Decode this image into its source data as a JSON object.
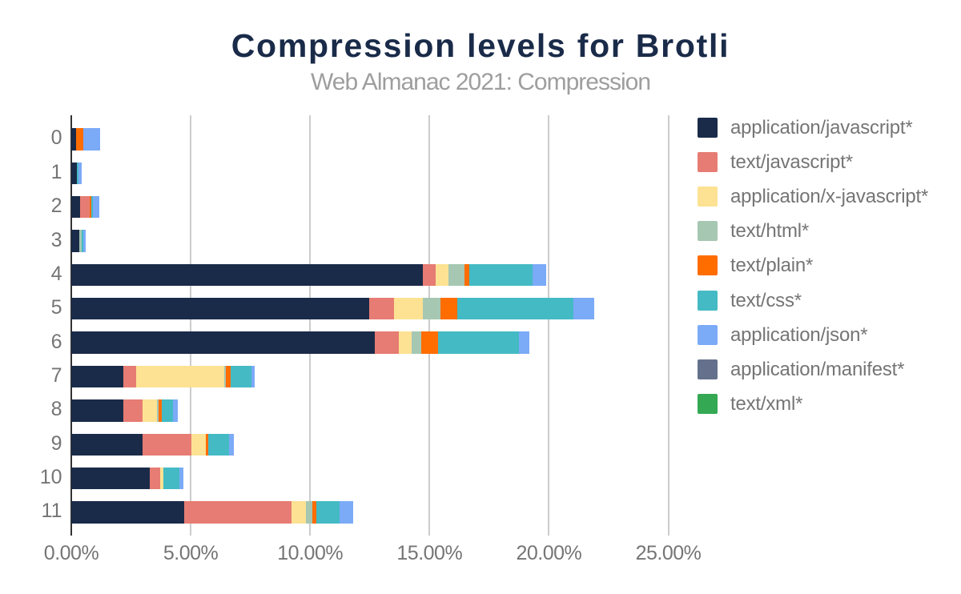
{
  "title": "Compression levels for Brotli",
  "subtitle": "Web Almanac 2021: Compression",
  "chart_data": {
    "type": "bar",
    "stacked": true,
    "orientation": "horizontal",
    "title": "Compression levels for Brotli",
    "subtitle": "Web Almanac 2021: Compression",
    "xlabel": "",
    "ylabel": "",
    "categories": [
      "0",
      "1",
      "2",
      "3",
      "4",
      "5",
      "6",
      "7",
      "8",
      "9",
      "10",
      "11"
    ],
    "x_tick_labels": [
      "0.00%",
      "5.00%",
      "10.00%",
      "15.00%",
      "20.00%",
      "25.00%"
    ],
    "x_tick_values": [
      0,
      5,
      10,
      15,
      20,
      25
    ],
    "xlim": [
      0,
      25
    ],
    "grid": "vertical",
    "legend_position": "right",
    "value_unit": "percent",
    "series": [
      {
        "name": "application/javascript*",
        "color": "#1a2b49",
        "values": [
          0.21,
          0.22,
          0.36,
          0.35,
          14.73,
          12.46,
          12.72,
          2.17,
          2.17,
          2.99,
          3.3,
          4.72
        ]
      },
      {
        "name": "text/javascript*",
        "color": "#e67c73",
        "values": [
          0,
          0,
          0.41,
          0,
          0.52,
          1.04,
          1.0,
          0.53,
          0.82,
          2.03,
          0.42,
          4.49
        ]
      },
      {
        "name": "application/x-javascript*",
        "color": "#fde293",
        "values": [
          0,
          0,
          0,
          0,
          0.53,
          1.23,
          0.53,
          3.7,
          0.6,
          0.63,
          0.13,
          0.63
        ]
      },
      {
        "name": "text/html*",
        "color": "#a6c7b2",
        "values": [
          0,
          0,
          0,
          0.08,
          0.69,
          0.73,
          0.4,
          0.06,
          0.06,
          0,
          0,
          0.26
        ]
      },
      {
        "name": "text/plain*",
        "color": "#ff6d01",
        "values": [
          0.28,
          0,
          0.07,
          0,
          0.21,
          0.72,
          0.72,
          0.21,
          0.14,
          0.09,
          0,
          0.16
        ]
      },
      {
        "name": "text/css*",
        "color": "#44bac4",
        "values": [
          0,
          0.07,
          0.06,
          0.08,
          2.63,
          4.86,
          3.37,
          0.88,
          0.47,
          0.85,
          0.69,
          0.98
        ]
      },
      {
        "name": "application/json*",
        "color": "#7baaf7",
        "values": [
          0.73,
          0.13,
          0.26,
          0.11,
          0.58,
          0.86,
          0.45,
          0.12,
          0.2,
          0.22,
          0.14,
          0.58
        ]
      },
      {
        "name": "application/manifest*",
        "color": "#65718c",
        "values": [
          0,
          0,
          0,
          0,
          0,
          0,
          0,
          0,
          0,
          0,
          0,
          0
        ]
      },
      {
        "name": "text/xml*",
        "color": "#34a853",
        "values": [
          0,
          0,
          0,
          0,
          0,
          0,
          0,
          0,
          0,
          0,
          0,
          0
        ]
      }
    ]
  },
  "colors": {
    "background": "#ffffff",
    "title": "#1a2b49",
    "subtitle": "#9e9e9e",
    "axis_label": "#757575",
    "legend_label": "#757575",
    "gridline": "#cccccc",
    "axis_line": "#333333"
  }
}
